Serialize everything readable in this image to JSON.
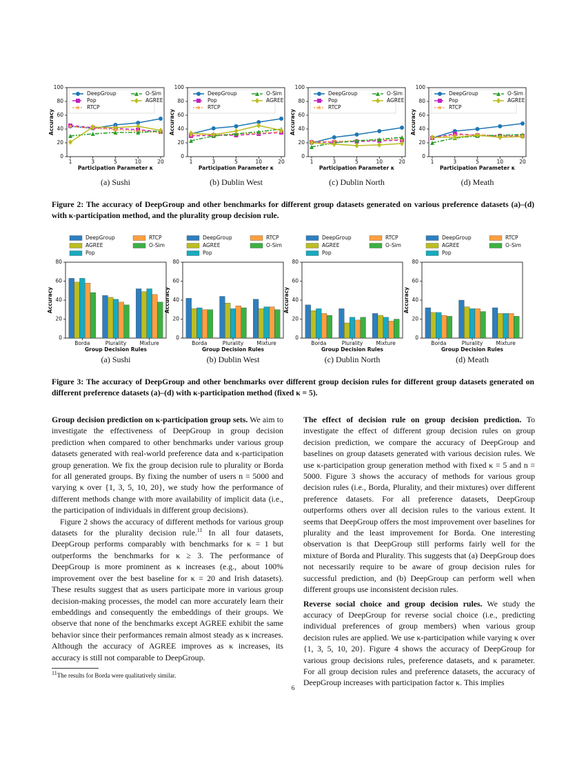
{
  "chart_data": [
    {
      "type": "line",
      "caption": "(a) Sushi",
      "xlabel": "Participation Parameter κ",
      "ylabel": "Accuracy",
      "categories": [
        "1",
        "3",
        "5",
        "10",
        "20"
      ],
      "ylim": [
        0,
        100
      ],
      "yticks": [
        0,
        20,
        40,
        60,
        80,
        100
      ],
      "legend": "upper left",
      "series": [
        {
          "name": "DeepGroup",
          "color": "#1f77b4",
          "marker": "circle",
          "dash": "none",
          "values": [
            44,
            41,
            46,
            49,
            55
          ]
        },
        {
          "name": "Pop",
          "color": "#c020c0",
          "marker": "square",
          "dash": "5 3",
          "values": [
            45,
            42,
            41,
            39,
            36
          ]
        },
        {
          "name": "RTCP",
          "color": "#ff9f40",
          "marker": "star",
          "dash": "2 2",
          "values": [
            44,
            41,
            39,
            37,
            35
          ]
        },
        {
          "name": "O-Sim",
          "color": "#2ca02c",
          "marker": "triangle",
          "dash": "6 2 2 2",
          "values": [
            30,
            33,
            35,
            35,
            37
          ]
        },
        {
          "name": "AGREE",
          "color": "#bcbd22",
          "marker": "diamond",
          "dash": "none",
          "values": [
            21,
            43,
            42,
            44,
            38
          ]
        }
      ]
    },
    {
      "type": "line",
      "caption": "(b) Dublin West",
      "xlabel": "Participation Parameter κ",
      "ylabel": "Accuracy",
      "categories": [
        "1",
        "3",
        "5",
        "10",
        "20"
      ],
      "ylim": [
        0,
        100
      ],
      "yticks": [
        0,
        20,
        40,
        60,
        80,
        100
      ],
      "legend": "upper left",
      "series": [
        {
          "name": "DeepGroup",
          "color": "#1f77b4",
          "marker": "circle",
          "dash": "none",
          "values": [
            33,
            41,
            44,
            50,
            55
          ]
        },
        {
          "name": "Pop",
          "color": "#c020c0",
          "marker": "square",
          "dash": "5 3",
          "values": [
            30,
            31,
            31,
            33,
            35
          ]
        },
        {
          "name": "RTCP",
          "color": "#ff9f40",
          "marker": "star",
          "dash": "2 2",
          "values": [
            31,
            32,
            32,
            34,
            36
          ]
        },
        {
          "name": "O-Sim",
          "color": "#2ca02c",
          "marker": "triangle",
          "dash": "6 2 2 2",
          "values": [
            23,
            30,
            33,
            36,
            40
          ]
        },
        {
          "name": "AGREE",
          "color": "#bcbd22",
          "marker": "diamond",
          "dash": "none",
          "values": [
            34,
            32,
            37,
            45,
            38
          ]
        }
      ]
    },
    {
      "type": "line",
      "caption": "(c) Dublin North",
      "xlabel": "Participation Parameter κ",
      "ylabel": "Accuracy",
      "categories": [
        "1",
        "3",
        "5",
        "10",
        "20"
      ],
      "ylim": [
        0,
        100
      ],
      "yticks": [
        0,
        20,
        40,
        60,
        80,
        100
      ],
      "legend": "upper left",
      "series": [
        {
          "name": "DeepGroup",
          "color": "#1f77b4",
          "marker": "circle",
          "dash": "none",
          "values": [
            20,
            28,
            32,
            37,
            42
          ]
        },
        {
          "name": "Pop",
          "color": "#c020c0",
          "marker": "square",
          "dash": "5 3",
          "values": [
            21,
            21,
            22,
            23,
            24
          ]
        },
        {
          "name": "RTCP",
          "color": "#ff9f40",
          "marker": "star",
          "dash": "2 2",
          "values": [
            22,
            22,
            23,
            24,
            25
          ]
        },
        {
          "name": "O-Sim",
          "color": "#2ca02c",
          "marker": "triangle",
          "dash": "6 2 2 2",
          "values": [
            14,
            20,
            23,
            25,
            28
          ]
        },
        {
          "name": "AGREE",
          "color": "#bcbd22",
          "marker": "diamond",
          "dash": "none",
          "values": [
            20,
            18,
            16,
            17,
            19
          ]
        }
      ]
    },
    {
      "type": "line",
      "caption": "(d) Meath",
      "xlabel": "Participation Parameter κ",
      "ylabel": "Accuracy",
      "categories": [
        "1",
        "3",
        "5",
        "10",
        "20"
      ],
      "ylim": [
        0,
        100
      ],
      "yticks": [
        0,
        20,
        40,
        60,
        80,
        100
      ],
      "legend": "upper left",
      "series": [
        {
          "name": "DeepGroup",
          "color": "#1f77b4",
          "marker": "circle",
          "dash": "none",
          "values": [
            27,
            37,
            40,
            44,
            48
          ]
        },
        {
          "name": "Pop",
          "color": "#c020c0",
          "marker": "square",
          "dash": "5 3",
          "values": [
            27,
            33,
            31,
            30,
            30
          ]
        },
        {
          "name": "RTCP",
          "color": "#ff9f40",
          "marker": "star",
          "dash": "2 2",
          "values": [
            27,
            31,
            32,
            30,
            31
          ]
        },
        {
          "name": "O-Sim",
          "color": "#2ca02c",
          "marker": "triangle",
          "dash": "6 2 2 2",
          "values": [
            20,
            27,
            30,
            31,
            32
          ]
        },
        {
          "name": "AGREE",
          "color": "#bcbd22",
          "marker": "diamond",
          "dash": "none",
          "values": [
            28,
            28,
            31,
            28,
            29
          ]
        }
      ]
    },
    {
      "type": "bar",
      "caption": "(a) Sushi",
      "xlabel": "Group Decision Rules",
      "ylabel": "Accuracy",
      "categories": [
        "Borda",
        "Plurality",
        "Mixture"
      ],
      "ylim": [
        0,
        80
      ],
      "yticks": [
        0,
        20,
        40,
        60,
        80
      ],
      "legend": "above",
      "series": [
        {
          "name": "DeepGroup",
          "color": "#2e7fbf",
          "values": [
            63,
            45,
            52
          ]
        },
        {
          "name": "AGREE",
          "color": "#bcbd22",
          "values": [
            59,
            43,
            49
          ]
        },
        {
          "name": "Pop",
          "color": "#17aabf",
          "values": [
            63,
            41,
            52
          ]
        },
        {
          "name": "RTCP",
          "color": "#ff9f40",
          "values": [
            58,
            38,
            46
          ]
        },
        {
          "name": "O-Sim",
          "color": "#3cb043",
          "values": [
            48,
            35,
            38
          ]
        }
      ]
    },
    {
      "type": "bar",
      "caption": "(b) Dublin West",
      "xlabel": "Group Decision Rules",
      "ylabel": "Accuracy",
      "categories": [
        "Borda",
        "Plurality",
        "Mixture"
      ],
      "ylim": [
        0,
        80
      ],
      "yticks": [
        0,
        20,
        40,
        60,
        80
      ],
      "legend": "above",
      "series": [
        {
          "name": "DeepGroup",
          "color": "#2e7fbf",
          "values": [
            42,
            44,
            41
          ]
        },
        {
          "name": "AGREE",
          "color": "#bcbd22",
          "values": [
            31,
            37,
            31
          ]
        },
        {
          "name": "Pop",
          "color": "#17aabf",
          "values": [
            32,
            31,
            33
          ]
        },
        {
          "name": "RTCP",
          "color": "#ff9f40",
          "values": [
            30,
            34,
            33
          ]
        },
        {
          "name": "O-Sim",
          "color": "#3cb043",
          "values": [
            30,
            32,
            30
          ]
        }
      ]
    },
    {
      "type": "bar",
      "caption": "(c) Dublin North",
      "xlabel": "Group Decision Rules",
      "ylabel": "Accuracy",
      "categories": [
        "Borda",
        "Plurality",
        "Mixture"
      ],
      "ylim": [
        0,
        80
      ],
      "yticks": [
        0,
        20,
        40,
        60,
        80
      ],
      "legend": "above",
      "series": [
        {
          "name": "DeepGroup",
          "color": "#2e7fbf",
          "values": [
            35,
            31,
            26
          ]
        },
        {
          "name": "AGREE",
          "color": "#bcbd22",
          "values": [
            29,
            16,
            24
          ]
        },
        {
          "name": "Pop",
          "color": "#17aabf",
          "values": [
            31,
            22,
            22
          ]
        },
        {
          "name": "RTCP",
          "color": "#ff9f40",
          "values": [
            26,
            19,
            18
          ]
        },
        {
          "name": "O-Sim",
          "color": "#3cb043",
          "values": [
            24,
            22,
            20
          ]
        }
      ]
    },
    {
      "type": "bar",
      "caption": "(d) Meath",
      "xlabel": "Group Decision Rules",
      "ylabel": "Accuracy",
      "categories": [
        "Borda",
        "Plurality",
        "Mixture"
      ],
      "ylim": [
        0,
        80
      ],
      "yticks": [
        0,
        20,
        40,
        60,
        80
      ],
      "legend": "above",
      "series": [
        {
          "name": "DeepGroup",
          "color": "#2e7fbf",
          "values": [
            32,
            40,
            32
          ]
        },
        {
          "name": "AGREE",
          "color": "#bcbd22",
          "values": [
            27,
            33,
            26
          ]
        },
        {
          "name": "Pop",
          "color": "#17aabf",
          "values": [
            27,
            31,
            26
          ]
        },
        {
          "name": "RTCP",
          "color": "#ff9f40",
          "values": [
            24,
            31,
            26
          ]
        },
        {
          "name": "O-Sim",
          "color": "#3cb043",
          "values": [
            23,
            28,
            23
          ]
        }
      ]
    }
  ],
  "figure2_caption": "Figure 2: The accuracy of DeepGroup and other benchmarks for different group datasets generated on various preference datasets (a)–(d) with κ-participation method, and the plurality group decision rule.",
  "figure3_caption": "Figure 3: The accuracy of DeepGroup and other benchmarks over different group decision rules for different group datasets generated on different preference datasets (a)–(d) with κ-participation method (fixed κ = 5).",
  "left_column": {
    "p1": {
      "heading": "Group decision prediction on κ-participation group sets.",
      "text": "We aim to investigate the effectiveness of DeepGroup in group decision prediction when compared to other benchmarks under various group datasets generated with real-world preference data and κ-participation group generation. We fix the group decision rule to plurality or Borda for all generated groups. By fixing the number of users n = 5000 and varying κ over {1, 3, 5, 10, 20}, we study how the performance of different methods change with more availability of implicit data (i.e., the participation of individuals in different group decisions)."
    },
    "p2": {
      "text_before": "Figure 2 shows the accuracy of different methods for various group datasets for the plurality decision rule.",
      "footnote_mark": "11",
      "text_after": " In all four datasets, DeepGroup performs comparably with benchmarks for κ = 1 but outperforms the benchmarks for κ ≥ 3. The performance of DeepGroup is more prominent as κ increases (e.g., about 100% improvement over the best baseline for κ = 20 and Irish datasets). These results suggest that as users participate more in various group decision-making processes, the model can more accurately learn their embeddings and consequently the embeddings of their groups. We observe that none of the benchmarks except AGREE exhibit the same behavior since their performances remain almost steady as κ increases. Although the accuracy of AGREE improves as κ increases, its accuracy is still not comparable to DeepGroup."
    },
    "footnote": {
      "mark": "11",
      "text": "The results for Borda were qualitatively similar."
    }
  },
  "right_column": {
    "p3": {
      "heading": "The effect of decision rule on group decision prediction.",
      "text": "To investigate the effect of different group decision rules on group decision prediction, we compare the accuracy of DeepGroup and baselines on group datasets generated with various decision rules. We use κ-participation group generation method with fixed κ = 5 and n = 5000. Figure 3 shows the accuracy of methods for various group decision rules (i.e., Borda, Plurality, and their mixtures) over different preference datasets. For all preference datasets, DeepGroup outperforms others over all decision rules to the various extent. It seems that DeepGroup offers the most improvement over baselines for plurality and the least improvement for Borda. One interesting observation is that DeepGroup still performs fairly well for the mixture of Borda and Plurality. This suggests that (a) DeepGroup does not necessarily require to be aware of group decision rules for successful prediction, and (b) DeepGroup can perform well when different groups use inconsistent decision rules."
    },
    "p4": {
      "heading": "Reverse social choice and group decision rules.",
      "text": "We study the accuracy of DeepGroup for reverse social choice (i.e., predicting individual preferences of group members) when various group decision rules are applied. We use κ-participation while varying κ over {1, 3, 5, 10, 20}. Figure 4 shows the accuracy of DeepGroup for various group decisions rules, preference datasets, and κ parameter. For all group decision rules and preference datasets, the accuracy of DeepGroup increases with participation factor κ. This implies"
    }
  },
  "page_number": "6"
}
